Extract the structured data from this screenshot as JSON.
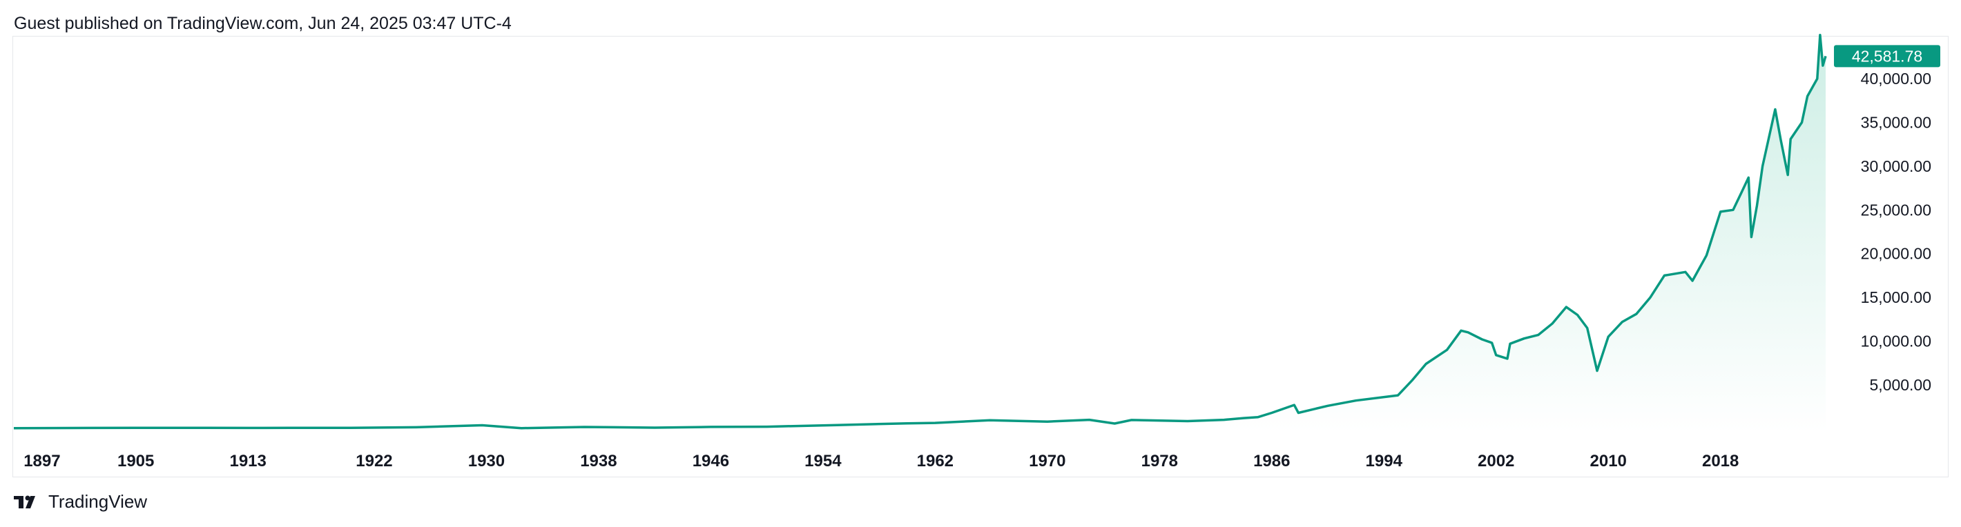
{
  "header": {
    "published": "Guest published on TradingView.com, Jun 24, 2025 03:47 UTC-4"
  },
  "footer": {
    "brand": "TradingView",
    "logo_icon": "tradingview-logo-icon"
  },
  "colors": {
    "line": "#089981",
    "area_top": "#cdeee5",
    "area_bottom": "#ffffff",
    "label_bg": "#089981"
  },
  "chart_data": {
    "type": "area",
    "title": "",
    "xlabel": "",
    "ylabel": "",
    "last_value_label": "42,581.78",
    "grid": false,
    "y_ticks": [
      "5,000.00",
      "10,000.00",
      "15,000.00",
      "20,000.00",
      "25,000.00",
      "30,000.00",
      "35,000.00",
      "40,000.00"
    ],
    "y_tick_values": [
      5000,
      10000,
      15000,
      20000,
      25000,
      30000,
      35000,
      40000
    ],
    "x_ticks": [
      "1897",
      "1905",
      "1913",
      "1922",
      "1930",
      "1938",
      "1946",
      "1954",
      "1962",
      "1970",
      "1978",
      "1986",
      "1994",
      "2002",
      "2010",
      "2018"
    ],
    "x_tick_values": [
      1897,
      1905,
      1913,
      1922,
      1930,
      1938,
      1946,
      1954,
      1962,
      1970,
      1978,
      1986,
      1994,
      2002,
      2010,
      2018
    ],
    "xlim": [
      1896.3,
      2025.5
    ],
    "ylim": [
      -370,
      44900
    ],
    "series": [
      {
        "x": [
          1896.3,
          1900,
          1905,
          1910,
          1913,
          1916,
          1920,
          1925,
          1929.7,
          1932.5,
          1937,
          1942,
          1946,
          1950,
          1955,
          1960,
          1962,
          1965.9,
          1970,
          1973,
          1974.8,
          1976,
          1980,
          1982.6,
          1984,
          1985,
          1986,
          1987.6,
          1987.9,
          1990,
          1992,
          1995,
          1996,
          1997,
          1998.5,
          1999.5,
          2000,
          2001,
          2001.7,
          2002,
          2002.8,
          2003,
          2004,
          2005,
          2006,
          2007,
          2007.8,
          2008.5,
          2009.2,
          2010,
          2011,
          2012,
          2013,
          2014,
          2015.5,
          2016,
          2017,
          2018,
          2018.9,
          2019.5,
          2020,
          2020.2,
          2020.6,
          2021,
          2021.9,
          2022.3,
          2022.8,
          2023,
          2023.8,
          2024.2,
          2024.9,
          2025.1,
          2025.3,
          2025.5
        ],
        "y": [
          50,
          60,
          90,
          80,
          70,
          90,
          80,
          150,
          380,
          50,
          180,
          100,
          190,
          210,
          400,
          600,
          650,
          950,
          800,
          1000,
          580,
          980,
          850,
          1000,
          1200,
          1300,
          1800,
          2700,
          1800,
          2600,
          3200,
          3800,
          5500,
          7400,
          9000,
          11200,
          11000,
          10200,
          9800,
          8400,
          8000,
          9700,
          10300,
          10700,
          12000,
          13900,
          13000,
          11500,
          6600,
          10500,
          12200,
          13100,
          15000,
          17500,
          17900,
          16900,
          19800,
          24800,
          25000,
          27000,
          28700,
          21900,
          25500,
          30000,
          36500,
          33000,
          29000,
          33100,
          35000,
          38000,
          40000,
          45000,
          41500,
          42581.78
        ]
      }
    ]
  }
}
